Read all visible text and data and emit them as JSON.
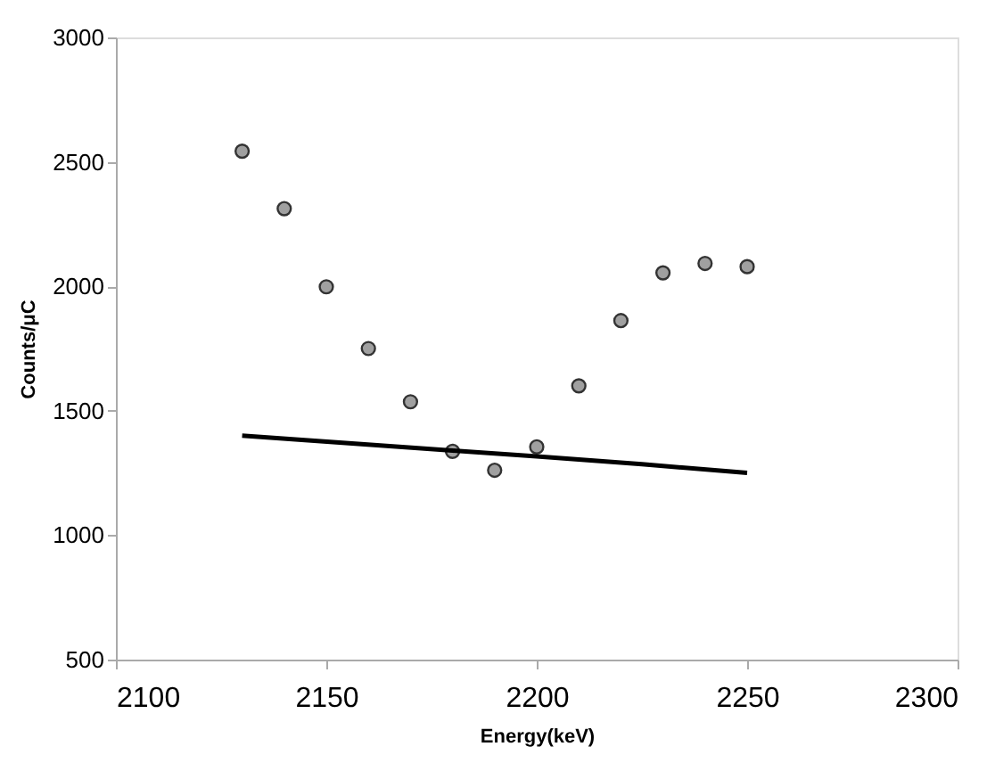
{
  "chart_data": {
    "type": "scatter",
    "xlabel": "Energy(keV)",
    "ylabel": "Counts/μC",
    "xlim": [
      2100,
      2300
    ],
    "xticks": [
      2100,
      2150,
      2200,
      2250,
      2300
    ],
    "ylim": [
      500,
      3000
    ],
    "yticks": [
      500,
      1000,
      1500,
      2000,
      2500,
      3000
    ],
    "grid": false,
    "series": [
      {
        "marker": "circle",
        "color": "#a0a0a0",
        "x": [
          2130,
          2140,
          2150,
          2160,
          2170,
          2180,
          2190,
          2200,
          2210,
          2220,
          2230,
          2240,
          2250
        ],
        "values": [
          2543,
          2312,
          1998,
          1750,
          1536,
          1337,
          1261,
          1355,
          1600,
          1862,
          2054,
          2092,
          2079
        ]
      },
      {
        "type": "line",
        "color": "#000000",
        "x": [
          2130,
          2180,
          2200,
          2225,
          2250
        ],
        "values": [
          1400,
          1340,
          1317,
          1285,
          1250
        ]
      }
    ]
  }
}
